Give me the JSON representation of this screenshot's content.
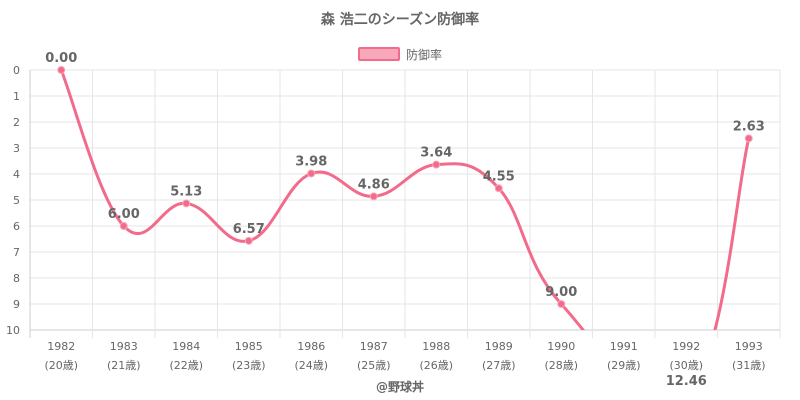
{
  "chart_data": {
    "type": "line",
    "title": "森 浩二のシーズン防御率",
    "legend": {
      "position": "top",
      "entries": [
        "防御率"
      ]
    },
    "credit": "@野球丼",
    "categories": [
      "1982",
      "1983",
      "1984",
      "1985",
      "1986",
      "1987",
      "1988",
      "1989",
      "1990",
      "1991",
      "1992",
      "1993"
    ],
    "age_labels": [
      "(20歳)",
      "(21歳)",
      "(22歳)",
      "(23歳)",
      "(24歳)",
      "(25歳)",
      "(26歳)",
      "(27歳)",
      "(28歳)",
      "(29歳)",
      "(30歳)",
      "(31歳)"
    ],
    "series": [
      {
        "name": "防御率",
        "values": [
          0.0,
          6.0,
          5.13,
          6.57,
          3.98,
          4.86,
          3.64,
          4.55,
          9.0,
          null,
          12.46,
          2.63
        ],
        "labels": [
          "0.00",
          "6.00",
          "5.13",
          "6.57",
          "3.98",
          "4.86",
          "3.64",
          "4.55",
          "9.00",
          "",
          "12.46",
          "2.63"
        ],
        "color": "#f26b8b"
      }
    ],
    "y_ticks": [
      "0",
      "1",
      "2",
      "3",
      "4",
      "5",
      "6",
      "7",
      "8",
      "9",
      "10"
    ],
    "ylim": [
      0,
      10
    ],
    "y_reversed": true,
    "grid": true
  }
}
